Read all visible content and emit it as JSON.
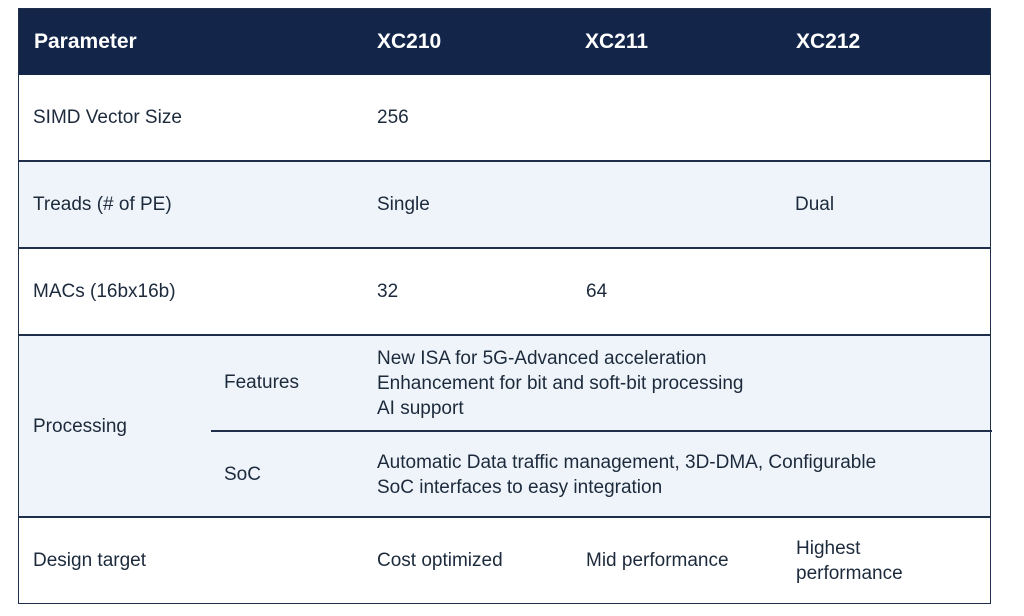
{
  "header": {
    "parameter": "Parameter",
    "col1": "XC210",
    "col2": "XC211",
    "col3": "XC212"
  },
  "rows": {
    "simd": {
      "label": "SIMD Vector Size",
      "xc210": "256"
    },
    "treads": {
      "label": "Treads (# of PE)",
      "xc210": "Single",
      "xc212": "Dual"
    },
    "macs": {
      "label": "MACs (16bx16b)",
      "xc210": "32",
      "xc211": "64"
    },
    "processing": {
      "label": "Processing",
      "features": {
        "label": "Features",
        "lines": [
          "New ISA for 5G-Advanced acceleration",
          "Enhancement for bit and soft-bit processing",
          "AI support"
        ]
      },
      "soc": {
        "label": "SoC",
        "lines": [
          "Automatic Data traffic management, 3D-DMA, Configurable",
          "SoC interfaces to easy integration"
        ]
      }
    },
    "design": {
      "label": "Design target",
      "xc210": "Cost optimized",
      "xc211": "Mid performance",
      "xc212_lines": [
        "Highest",
        "performance"
      ]
    }
  },
  "colors": {
    "header_bg": "#13264a",
    "alt_row_bg": "#eef4f9",
    "text": "#1c2a3c"
  }
}
